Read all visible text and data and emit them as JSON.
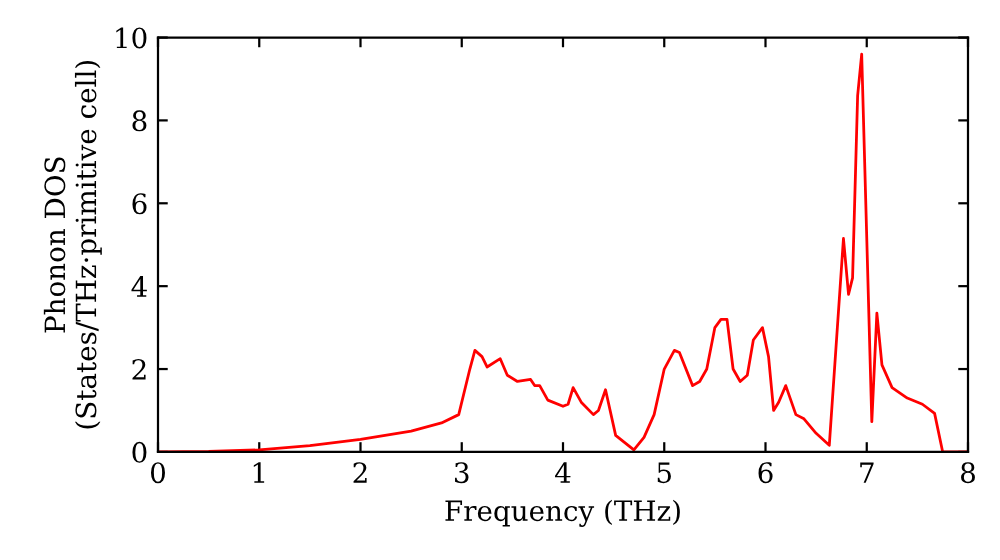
{
  "chart_data": {
    "type": "line",
    "xlabel": "Frequency (THz)",
    "ylabel": "Phonon DOS\n(States/THz·primitive cell)",
    "xlim": [
      0,
      8
    ],
    "ylim": [
      0,
      10
    ],
    "xticks": [
      0,
      1,
      2,
      3,
      4,
      5,
      6,
      7,
      8
    ],
    "yticks": [
      0,
      2,
      4,
      6,
      8,
      10
    ],
    "grid": false,
    "legend": false,
    "marker": "none",
    "line_style": "solid",
    "series": [
      {
        "color": "#ff0000",
        "x": [
          0,
          0.5,
          1,
          1.5,
          2,
          2.5,
          2.8,
          2.97,
          3.08,
          3.13,
          3.2,
          3.25,
          3.38,
          3.45,
          3.55,
          3.68,
          3.72,
          3.77,
          3.85,
          4.0,
          4.05,
          4.1,
          4.18,
          4.3,
          4.35,
          4.42,
          4.52,
          4.7,
          4.8,
          4.9,
          5.0,
          5.1,
          5.15,
          5.28,
          5.35,
          5.42,
          5.5,
          5.56,
          5.62,
          5.68,
          5.75,
          5.82,
          5.88,
          5.97,
          6.03,
          6.08,
          6.13,
          6.2,
          6.3,
          6.38,
          6.5,
          6.63,
          6.77,
          6.82,
          6.86,
          6.91,
          6.95,
          7.05,
          7.1,
          7.15,
          7.25,
          7.4,
          7.55,
          7.67,
          7.75,
          8.0
        ],
        "values": [
          0,
          0.01,
          0.05,
          0.15,
          0.3,
          0.5,
          0.7,
          0.9,
          2.0,
          2.45,
          2.3,
          2.05,
          2.25,
          1.85,
          1.7,
          1.75,
          1.6,
          1.6,
          1.25,
          1.1,
          1.15,
          1.55,
          1.2,
          0.9,
          1.0,
          1.5,
          0.4,
          0.05,
          0.35,
          0.9,
          2.0,
          2.45,
          2.4,
          1.6,
          1.7,
          2.0,
          3.0,
          3.2,
          3.2,
          2.0,
          1.7,
          1.85,
          2.7,
          3.0,
          2.3,
          1.0,
          1.2,
          1.6,
          0.9,
          0.8,
          0.45,
          0.16,
          5.15,
          3.8,
          4.2,
          8.6,
          9.6,
          0.73,
          3.35,
          2.1,
          1.55,
          1.3,
          1.15,
          0.93,
          0,
          0
        ]
      }
    ]
  }
}
